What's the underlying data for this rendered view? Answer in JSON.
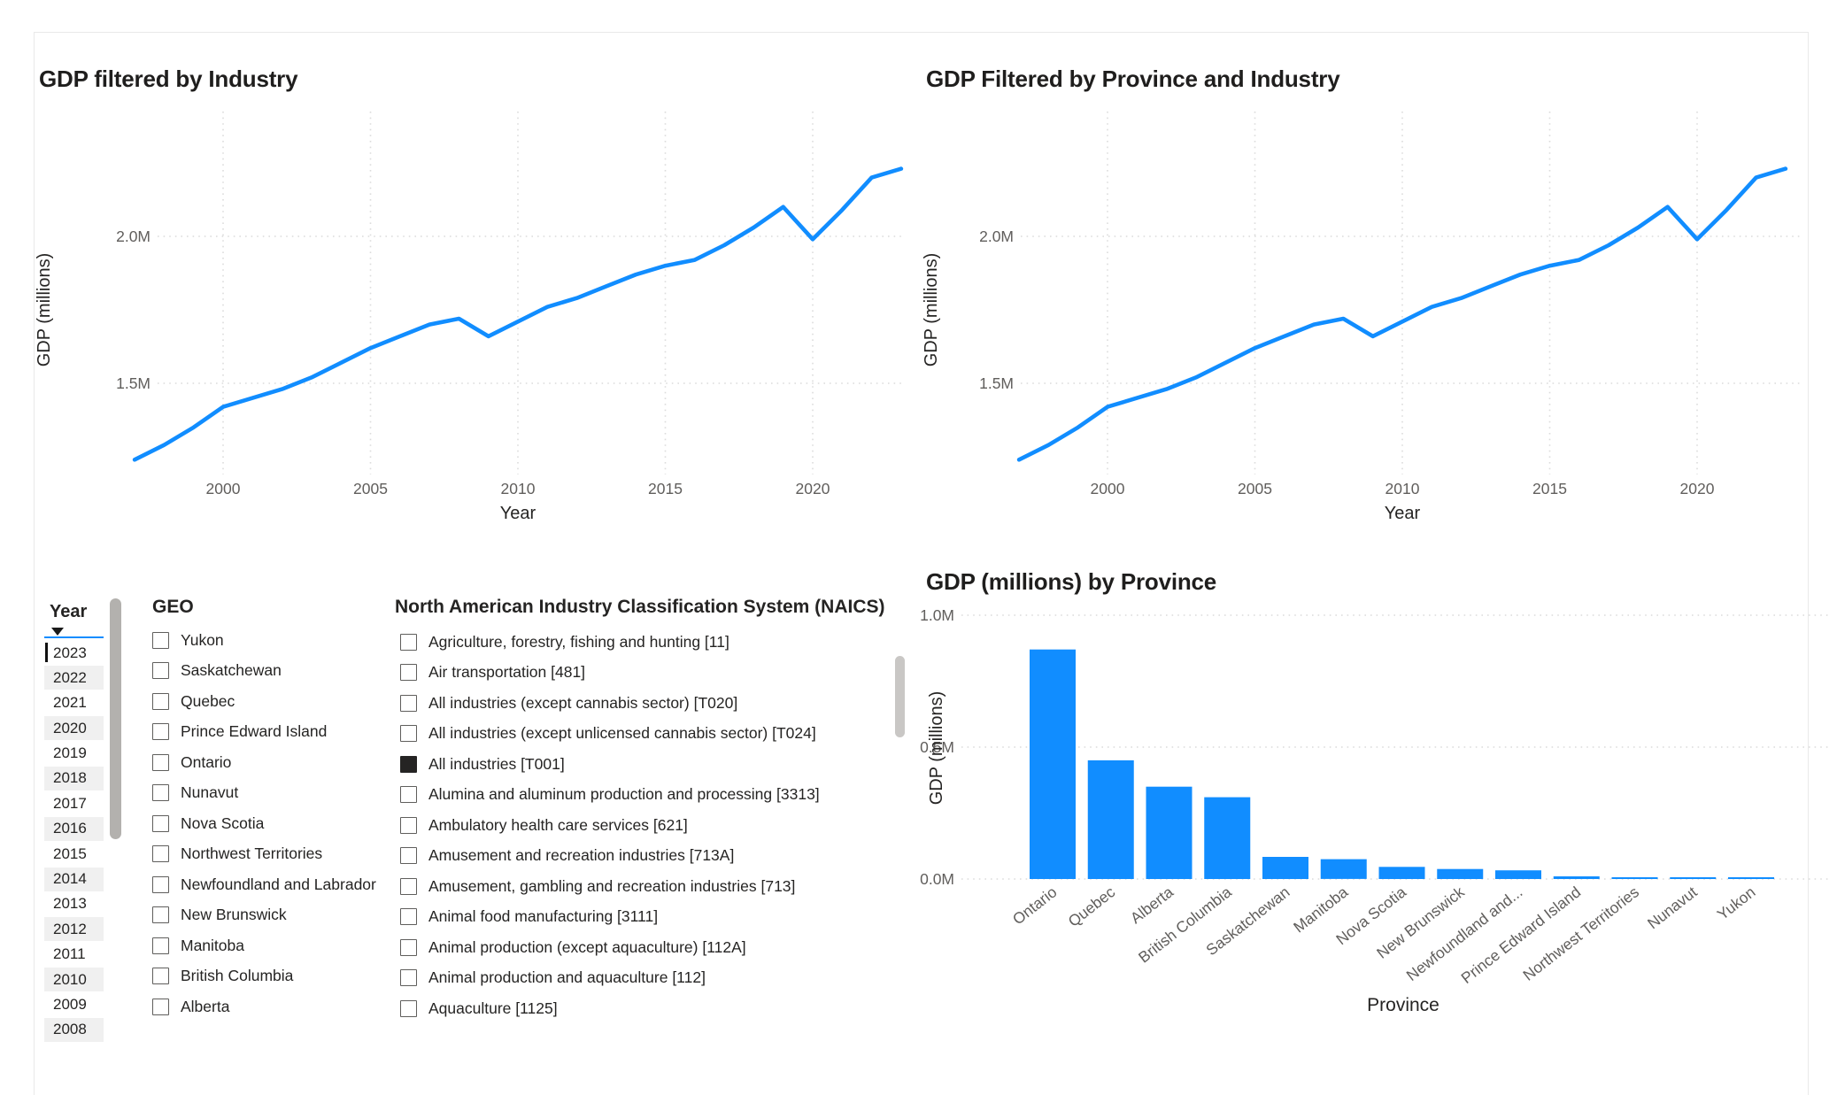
{
  "colors": {
    "accent": "#118DFF",
    "title_text": "#1f1e1d",
    "axis_title_text": "#252423",
    "tick_text": "#605E5C",
    "gridline": "#dcdcdc",
    "alt_row_bg": "#f0f0f0",
    "scrollbar": "#b3b1ae",
    "checked_fill": "#252423",
    "slicer_focus_line": "#118DFF"
  },
  "chart_data": [
    {
      "id": "line1",
      "type": "line",
      "title": "GDP filtered by Industry",
      "xlabel": "Year",
      "ylabel": "GDP (millions)",
      "x_ticks": [
        2000,
        2005,
        2010,
        2015,
        2020
      ],
      "y_ticks": [
        {
          "label": "1.5M",
          "value": 1.5
        },
        {
          "label": "2.0M",
          "value": 2.0
        }
      ],
      "xlim": [
        1996.5,
        2023.5
      ],
      "ylim": [
        1.15,
        2.45
      ],
      "grid": "dotted",
      "legend": "none",
      "x": [
        1997,
        1998,
        1999,
        2000,
        2001,
        2002,
        2003,
        2004,
        2005,
        2006,
        2007,
        2008,
        2009,
        2010,
        2011,
        2012,
        2013,
        2014,
        2015,
        2016,
        2017,
        2018,
        2019,
        2020,
        2021,
        2022,
        2023
      ],
      "y": [
        1.24,
        1.29,
        1.35,
        1.42,
        1.45,
        1.48,
        1.52,
        1.57,
        1.62,
        1.66,
        1.7,
        1.72,
        1.66,
        1.71,
        1.76,
        1.79,
        1.83,
        1.87,
        1.9,
        1.92,
        1.97,
        2.03,
        2.1,
        1.99,
        2.09,
        2.2,
        2.23
      ]
    },
    {
      "id": "line2",
      "type": "line",
      "title": "GDP Filtered by Province and Industry",
      "xlabel": "Year",
      "ylabel": "GDP (millions)",
      "x_ticks": [
        2000,
        2005,
        2010,
        2015,
        2020
      ],
      "y_ticks": [
        {
          "label": "1.5M",
          "value": 1.5
        },
        {
          "label": "2.0M",
          "value": 2.0
        }
      ],
      "xlim": [
        1996.5,
        2023.5
      ],
      "ylim": [
        1.15,
        2.45
      ],
      "grid": "dotted",
      "legend": "none",
      "x": [
        1997,
        1998,
        1999,
        2000,
        2001,
        2002,
        2003,
        2004,
        2005,
        2006,
        2007,
        2008,
        2009,
        2010,
        2011,
        2012,
        2013,
        2014,
        2015,
        2016,
        2017,
        2018,
        2019,
        2020,
        2021,
        2022,
        2023
      ],
      "y": [
        1.24,
        1.29,
        1.35,
        1.42,
        1.45,
        1.48,
        1.52,
        1.57,
        1.62,
        1.66,
        1.7,
        1.72,
        1.66,
        1.71,
        1.76,
        1.79,
        1.83,
        1.87,
        1.9,
        1.92,
        1.97,
        2.03,
        2.1,
        1.99,
        2.09,
        2.2,
        2.23
      ]
    },
    {
      "id": "bar",
      "type": "bar",
      "title": "GDP (millions) by Province",
      "xlabel": "Province",
      "ylabel": "GDP (millions)",
      "categories": [
        "Ontario",
        "Quebec",
        "Alberta",
        "British Columbia",
        "Saskatchewan",
        "Manitoba",
        "Nova Scotia",
        "New Brunswick",
        "Newfoundland and...",
        "Prince Edward Island",
        "Northwest Territories",
        "Nunavut",
        "Yukon"
      ],
      "values": [
        0.87,
        0.45,
        0.35,
        0.31,
        0.084,
        0.075,
        0.046,
        0.038,
        0.033,
        0.01,
        0.006,
        0.005,
        0.005
      ],
      "y_ticks": [
        {
          "label": "0.0M",
          "value": 0.0
        },
        {
          "label": "0.5M",
          "value": 0.5
        },
        {
          "label": "1.0M",
          "value": 1.0
        }
      ],
      "ylim": [
        0,
        1.05
      ],
      "grid": "dotted",
      "legend": "none"
    }
  ],
  "slicers": {
    "year": {
      "header": "Year",
      "selected": "2023",
      "items": [
        "2023",
        "2022",
        "2021",
        "2020",
        "2019",
        "2018",
        "2017",
        "2016",
        "2015",
        "2014",
        "2013",
        "2012",
        "2011",
        "2010",
        "2009",
        "2008"
      ]
    },
    "geo": {
      "header": "GEO",
      "items": [
        {
          "label": "Yukon",
          "checked": false
        },
        {
          "label": "Saskatchewan",
          "checked": false
        },
        {
          "label": "Quebec",
          "checked": false
        },
        {
          "label": "Prince Edward Island",
          "checked": false
        },
        {
          "label": "Ontario",
          "checked": false
        },
        {
          "label": "Nunavut",
          "checked": false
        },
        {
          "label": "Nova Scotia",
          "checked": false
        },
        {
          "label": "Northwest Territories",
          "checked": false
        },
        {
          "label": "Newfoundland and Labrador",
          "checked": false
        },
        {
          "label": "New Brunswick",
          "checked": false
        },
        {
          "label": "Manitoba",
          "checked": false
        },
        {
          "label": "British Columbia",
          "checked": false
        },
        {
          "label": "Alberta",
          "checked": false
        }
      ]
    },
    "naics": {
      "header": "North American Industry Classification System (NAICS)",
      "items": [
        {
          "label": "Agriculture, forestry, fishing and hunting [11]",
          "checked": false
        },
        {
          "label": "Air transportation [481]",
          "checked": false
        },
        {
          "label": "All industries (except cannabis sector) [T020]",
          "checked": false
        },
        {
          "label": "All industries (except unlicensed cannabis sector) [T024]",
          "checked": false
        },
        {
          "label": "All industries [T001]",
          "checked": true
        },
        {
          "label": "Alumina and aluminum production and processing [3313]",
          "checked": false
        },
        {
          "label": "Ambulatory health care services [621]",
          "checked": false
        },
        {
          "label": "Amusement and recreation industries [713A]",
          "checked": false
        },
        {
          "label": "Amusement, gambling and recreation industries [713]",
          "checked": false
        },
        {
          "label": "Animal food manufacturing [3111]",
          "checked": false
        },
        {
          "label": "Animal production (except aquaculture) [112A]",
          "checked": false
        },
        {
          "label": "Animal production and aquaculture [112]",
          "checked": false
        },
        {
          "label": "Aquaculture [1125]",
          "checked": false
        }
      ]
    }
  }
}
